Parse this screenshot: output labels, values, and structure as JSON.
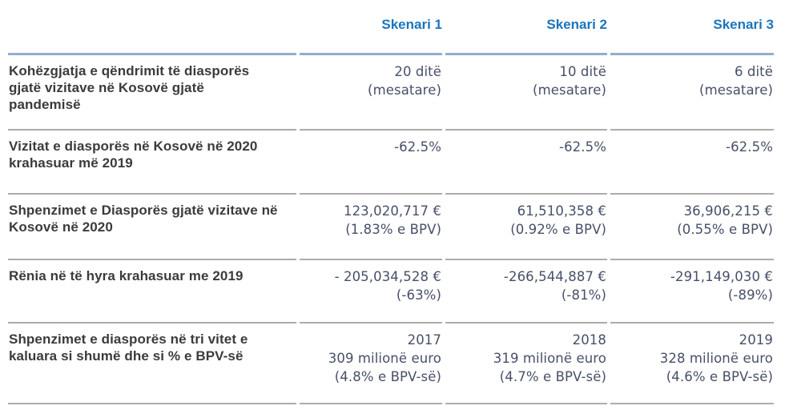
{
  "table": {
    "header": {
      "col1": "Skenari 1",
      "col2": "Skenari 2",
      "col3": "Skenari 3"
    },
    "rows": [
      {
        "label": "Kohëzgjatja e qëndrimit të diasporës gjatë vizitave në Kosovë gjatë pandemisë",
        "cells": [
          [
            "20 ditë",
            "(mesatare)"
          ],
          [
            "10 ditë",
            "(mesatare)"
          ],
          [
            "6 ditë",
            "(mesatare)"
          ]
        ]
      },
      {
        "label": "Vizitat e diasporës në Kosovë në 2020 krahasuar më 2019",
        "cells": [
          [
            "-62.5%"
          ],
          [
            "-62.5%"
          ],
          [
            "-62.5%"
          ]
        ]
      },
      {
        "label": "Shpenzimet e Diasporës gjatë vizitave në Kosovë në 2020",
        "cells": [
          [
            "123,020,717 €",
            "(1.83% e BPV)"
          ],
          [
            "61,510,358 €",
            "(0.92% e BPV)"
          ],
          [
            "36,906,215 €",
            "(0.55% e BPV)"
          ]
        ]
      },
      {
        "label": "Rënia në të hyra krahasuar me 2019",
        "cells": [
          [
            "- 205,034,528 €",
            "(-63%)"
          ],
          [
            "-266,544,887 €",
            "(-81%)"
          ],
          [
            "-291,149,030 €",
            "(-89%)"
          ]
        ]
      },
      {
        "label": "Shpenzimet e diasporës në tri vitet e kaluara si shumë dhe si % e BPV-së",
        "cells": [
          [
            "2017",
            "309 milionë euro",
            "(4.8% e BPV-së)"
          ],
          [
            "2018",
            "319 milionë euro",
            "(4.7% e BPV-së)"
          ],
          [
            "2019",
            "328 milionë euro",
            "(4.6% e BPV-së)"
          ]
        ]
      }
    ]
  },
  "colors": {
    "header_text": "#1b75bc",
    "header_rule": "#92aece",
    "row_rule": "#acacac",
    "label_text": "#3b3b3d",
    "value_text": "#475069"
  }
}
